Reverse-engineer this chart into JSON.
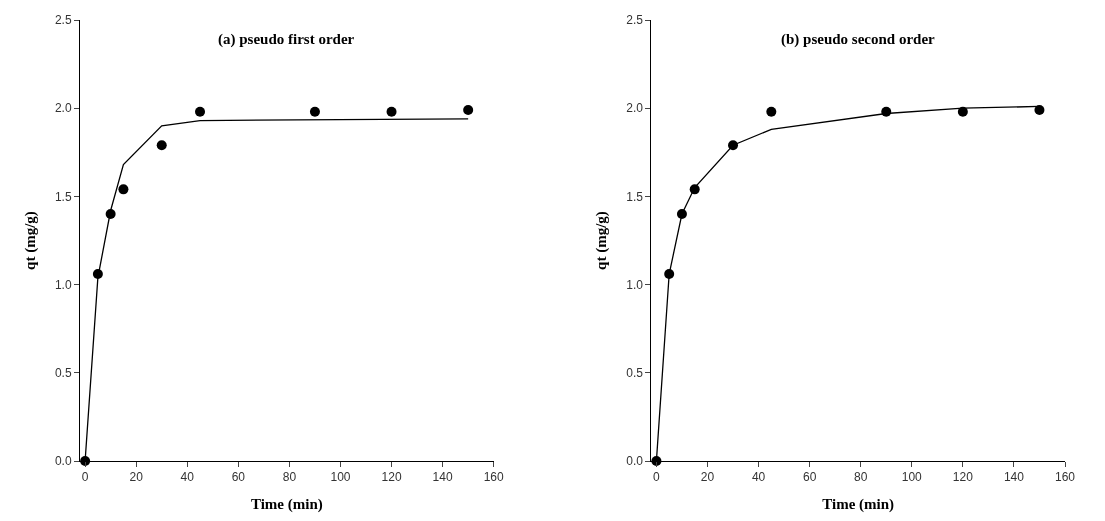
{
  "chart_data": [
    {
      "type": "scatter",
      "title": "(a) pseudo first order",
      "xlabel": "Time (min)",
      "ylabel": "qt (mg/g)",
      "xlim": [
        -2,
        160
      ],
      "ylim": [
        0,
        2.5
      ],
      "xticks": [
        0,
        20,
        40,
        60,
        80,
        100,
        120,
        140,
        160
      ],
      "yticks": [
        {
          "value": 0,
          "label": "0.0"
        },
        0.5,
        {
          "value": 1,
          "label": "1.0"
        },
        1.5,
        {
          "value": 2,
          "label": "2.0"
        },
        2.5
      ],
      "series": [
        {
          "marker": "circle",
          "color": "#000000",
          "x": [
            0,
            5,
            10,
            15,
            30,
            45,
            90,
            120,
            150
          ],
          "values": [
            0,
            1.06,
            1.4,
            1.54,
            1.79,
            1.98,
            1.98,
            1.98,
            1.99
          ]
        },
        {
          "type": "line",
          "color": "#000000",
          "line_style": "solid",
          "x": [
            0,
            5,
            10,
            15,
            30,
            45,
            150
          ],
          "values": [
            0,
            1.04,
            1.42,
            1.68,
            1.9,
            1.93,
            1.94
          ]
        }
      ]
    },
    {
      "type": "scatter",
      "title": "(b) pseudo second order",
      "xlabel": "Time (min)",
      "ylabel": "qt (mg/g)",
      "xlim": [
        -2,
        160
      ],
      "ylim": [
        0,
        2.5
      ],
      "xticks": [
        0,
        20,
        40,
        60,
        80,
        100,
        120,
        140,
        160
      ],
      "yticks": [
        {
          "value": 0,
          "label": "0.0"
        },
        0.5,
        {
          "value": 1,
          "label": "1.0"
        },
        1.5,
        {
          "value": 2,
          "label": "2.0"
        },
        2.5
      ],
      "series": [
        {
          "marker": "circle",
          "color": "#000000",
          "x": [
            0,
            5,
            10,
            15,
            30,
            45,
            90,
            120,
            150
          ],
          "values": [
            0,
            1.06,
            1.4,
            1.54,
            1.79,
            1.98,
            1.98,
            1.98,
            1.99
          ]
        },
        {
          "type": "line",
          "color": "#000000",
          "line_style": "solid",
          "x": [
            0,
            5,
            10,
            15,
            30,
            45,
            90,
            120,
            150
          ],
          "values": [
            0,
            1.06,
            1.4,
            1.55,
            1.79,
            1.88,
            1.97,
            2.0,
            2.01
          ]
        }
      ]
    }
  ]
}
